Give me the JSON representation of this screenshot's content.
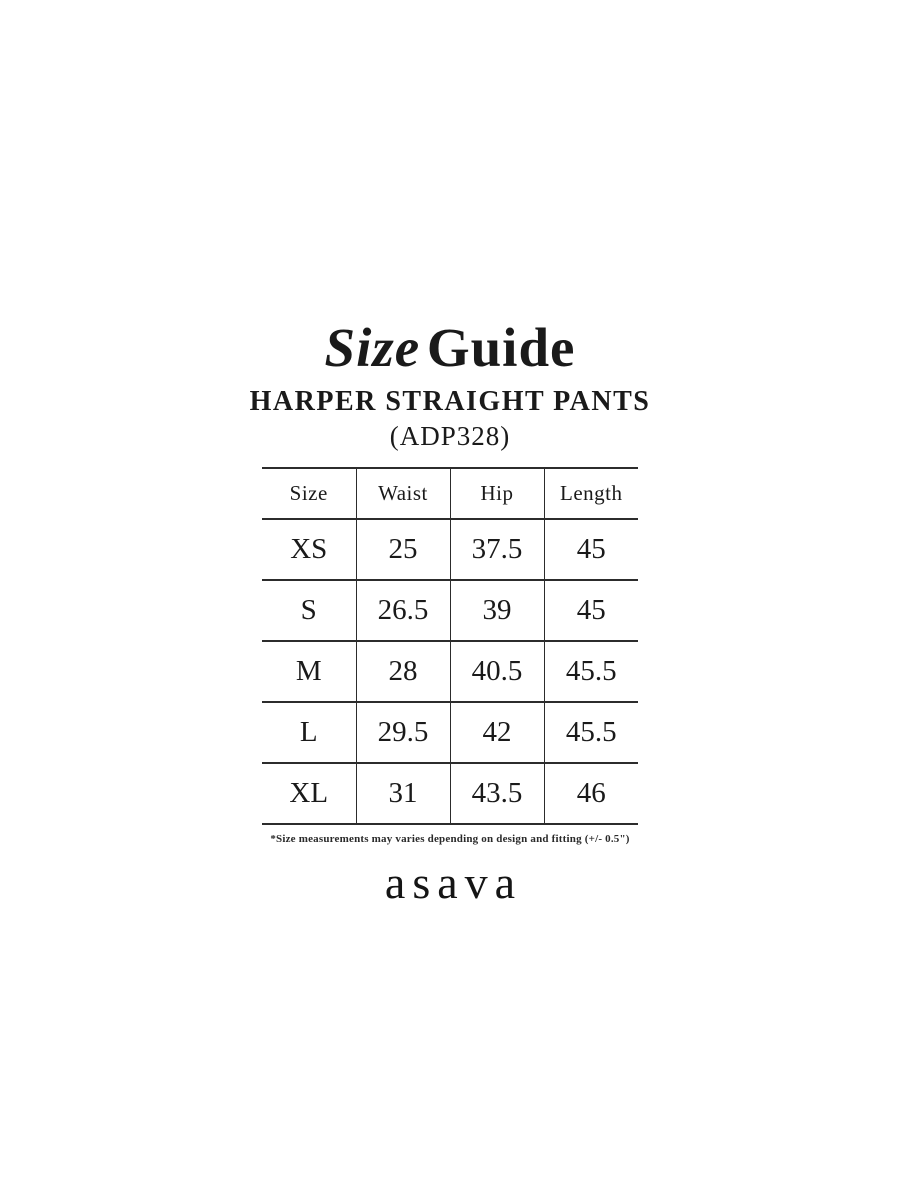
{
  "page": {
    "background": "#ffffff",
    "text_color": "#1a1a1a",
    "line_color": "#2c2c2c"
  },
  "header": {
    "title_italic": "Size",
    "title_regular": "Guide",
    "product_name": "HARPER STRAIGHT PANTS",
    "product_code": "(ADP328)"
  },
  "size_table": {
    "headers": [
      "Size",
      "Waist",
      "Hip",
      "Length"
    ],
    "rows": [
      [
        "XS",
        "25",
        "37.5",
        "45"
      ],
      [
        "S",
        "26.5",
        "39",
        "45"
      ],
      [
        "M",
        "28",
        "40.5",
        "45.5"
      ],
      [
        "L",
        "29.5",
        "42",
        "45.5"
      ],
      [
        "XL",
        "31",
        "43.5",
        "46"
      ]
    ]
  },
  "footnote": "*Size measurements may varies depending on design and fitting (+/- 0.5\")",
  "brand": "asava"
}
